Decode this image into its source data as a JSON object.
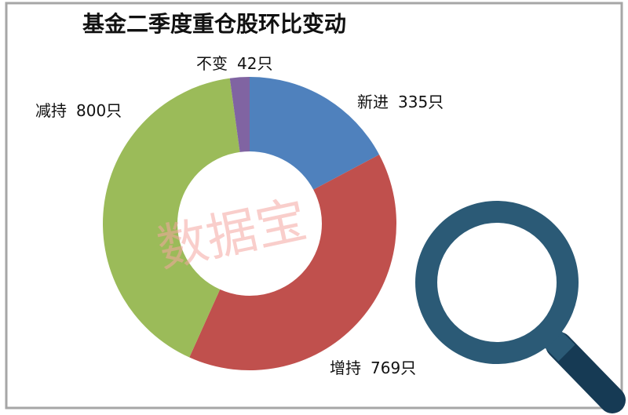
{
  "chart_data": {
    "type": "donut",
    "title": "基金二季度重仓股环比变动",
    "categories": [
      "新进",
      "增持",
      "减持",
      "不变"
    ],
    "values": [
      335,
      769,
      800,
      42
    ],
    "value_labels": [
      "335只",
      "769只",
      "800只",
      "42只"
    ],
    "colors": [
      "#4f81bd",
      "#c0504d",
      "#9bbb59",
      "#8064a2"
    ],
    "watermark": "数据宝"
  }
}
